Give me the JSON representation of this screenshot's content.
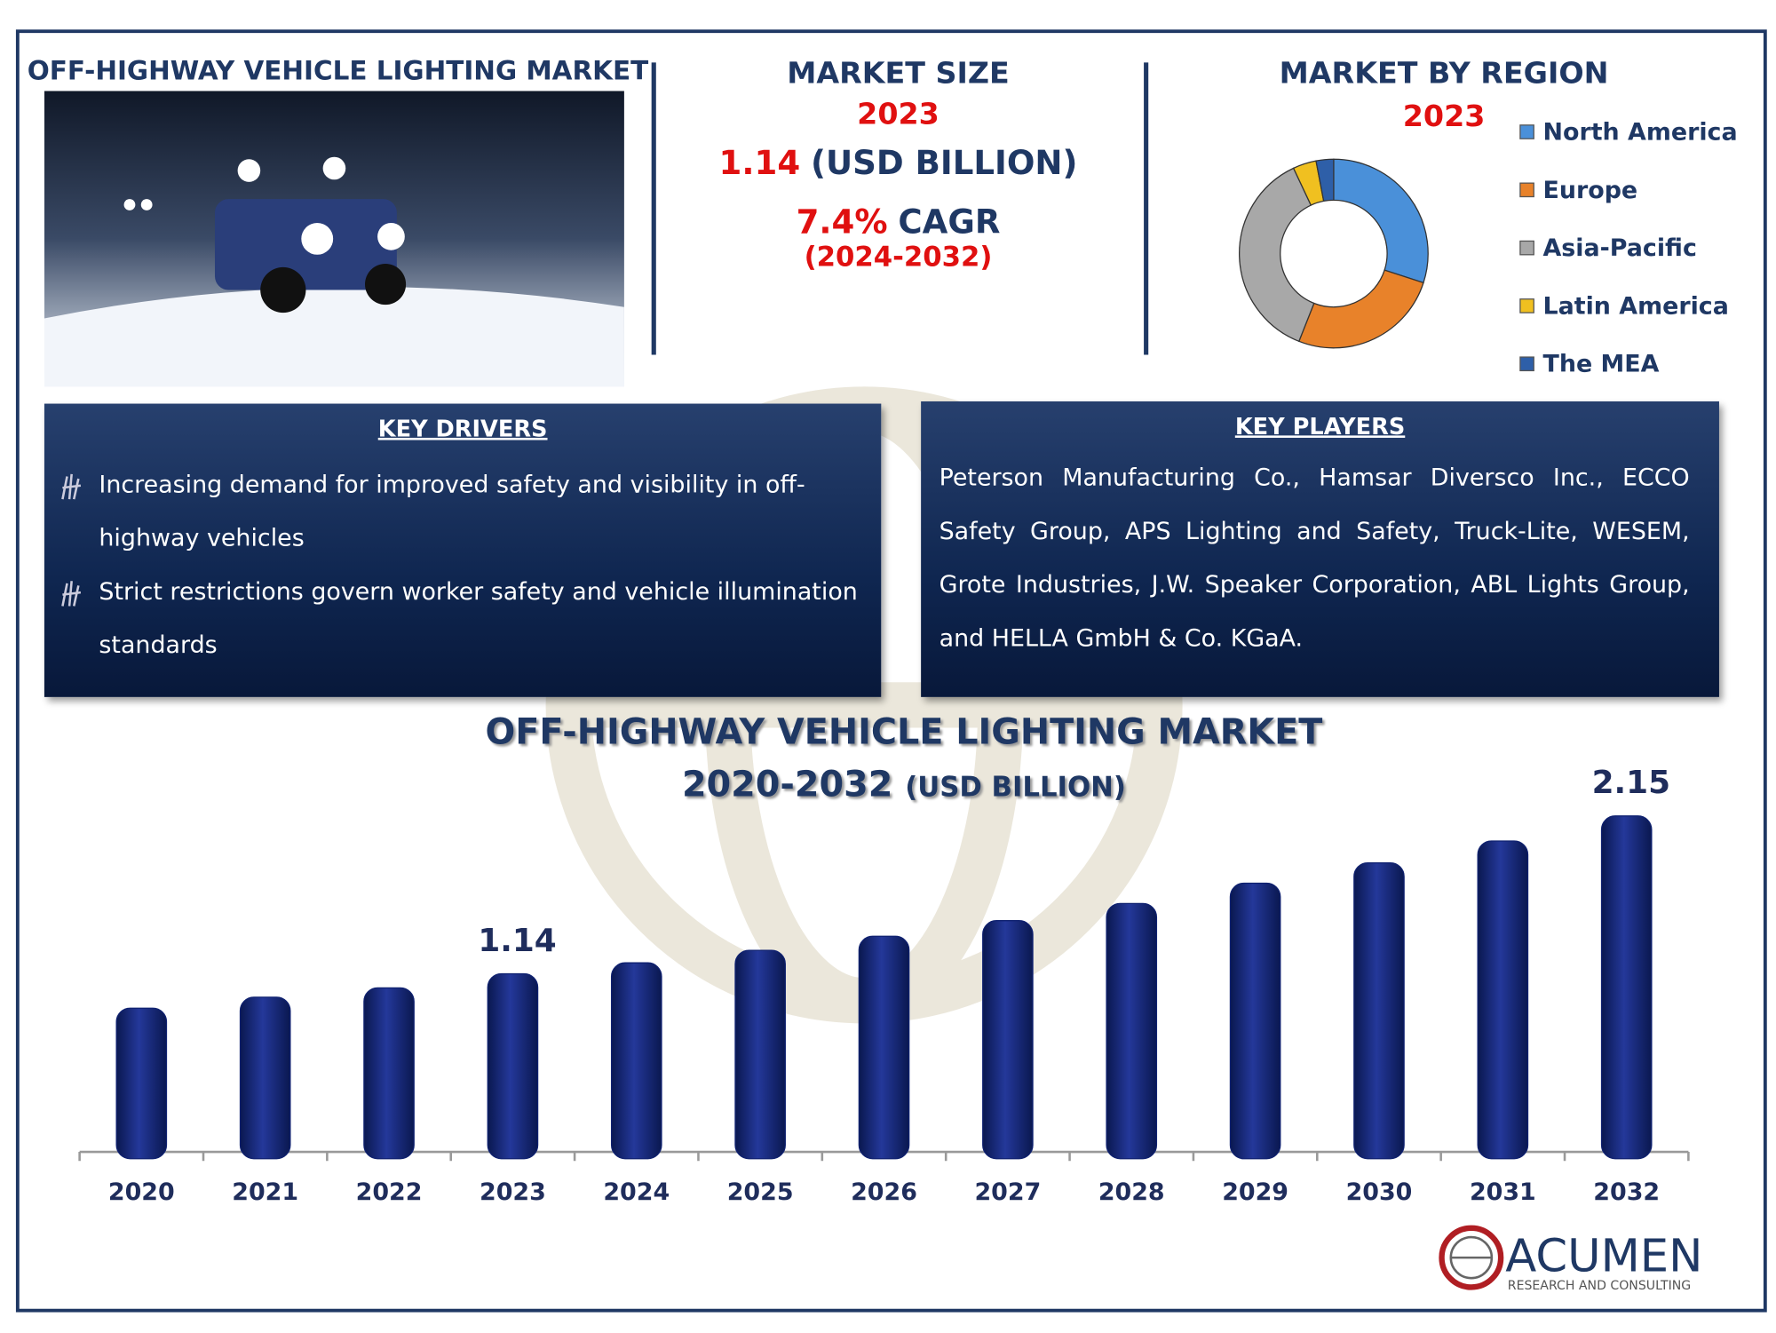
{
  "header": {
    "title": "OFF-HIGHWAY VEHICLE LIGHTING MARKET"
  },
  "market_size": {
    "title": "MARKET SIZE",
    "year": "2023",
    "value": "1.14",
    "unit": "(USD BILLION)",
    "cagr": "7.4%",
    "cagr_label": "CAGR",
    "period": "(2024-2032)"
  },
  "key_drivers": {
    "title": "KEY DRIVERS",
    "items": [
      "Increasing demand for improved safety and visibility in off-highway vehicles",
      "Strict restrictions govern worker safety and vehicle illumination standards"
    ]
  },
  "key_players": {
    "title": "KEY PLAYERS",
    "text": "Peterson Manufacturing Co., Hamsar Diversco Inc., ECCO Safety Group, APS Lighting and Safety, Truck-Lite, WESEM, Grote Industries, J.W. Speaker Corporation, ABL Lights Group, and HELLA GmbH & Co. KGaA."
  },
  "logo": {
    "company": "ACUMEN",
    "tagline": "RESEARCH AND CONSULTING"
  },
  "chart_data": [
    {
      "type": "donut",
      "title": "MARKET BY REGION",
      "subtitle": "2023",
      "categories": [
        "North America",
        "Europe",
        "Asia-Pacific",
        "Latin America",
        "The MEA"
      ],
      "values": [
        30,
        26,
        37,
        4,
        3
      ],
      "colors": [
        "#4a90d9",
        "#e8822a",
        "#a8a8a8",
        "#f0c020",
        "#2e5fa8"
      ],
      "legend": "right"
    },
    {
      "type": "bar",
      "title": "OFF-HIGHWAY VEHICLE LIGHTING MARKET",
      "subtitle": "2020-2032",
      "unit": "(USD BILLION)",
      "categories": [
        "2020",
        "2021",
        "2022",
        "2023",
        "2024",
        "2025",
        "2026",
        "2027",
        "2028",
        "2029",
        "2030",
        "2031",
        "2032"
      ],
      "values": [
        0.92,
        0.99,
        1.05,
        1.14,
        1.21,
        1.29,
        1.38,
        1.48,
        1.59,
        1.72,
        1.85,
        1.99,
        2.15
      ],
      "value_labels": [
        null,
        null,
        null,
        "1.14",
        null,
        null,
        null,
        null,
        null,
        null,
        null,
        null,
        "2.15"
      ],
      "color": "#0f2170",
      "ylim": [
        0,
        2.3
      ],
      "grid": false
    }
  ]
}
